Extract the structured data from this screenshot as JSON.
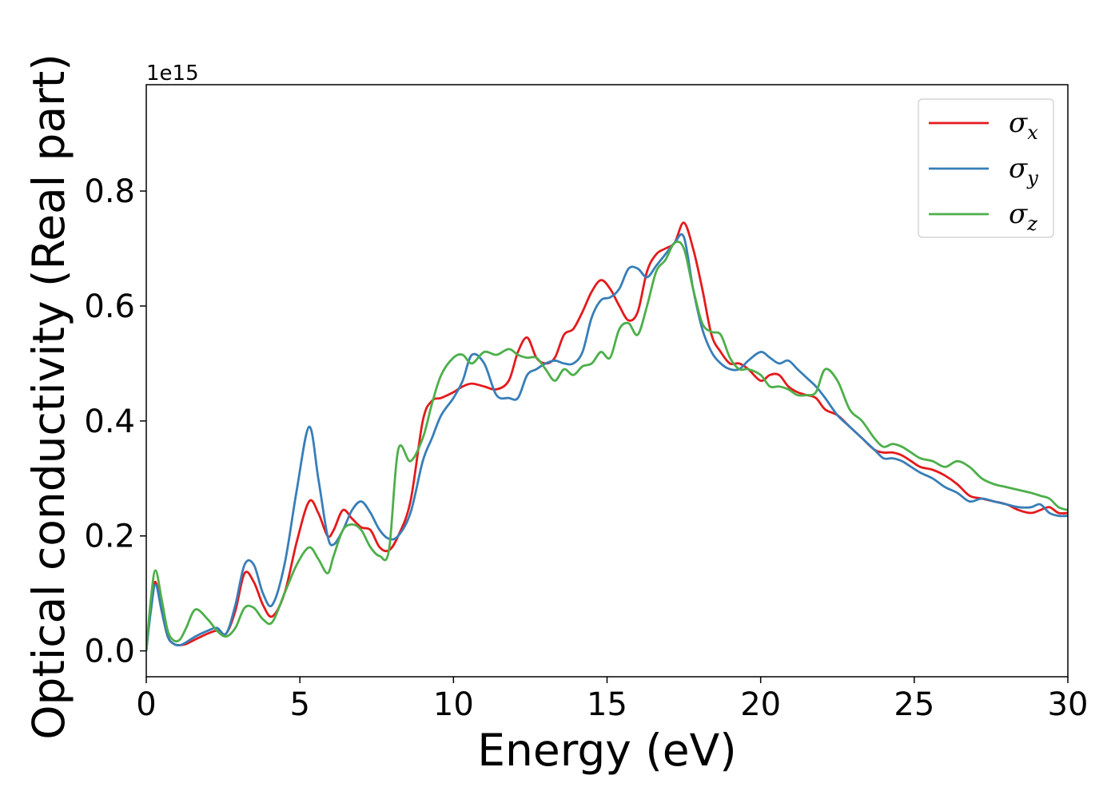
{
  "chart_data": {
    "type": "line",
    "title": "",
    "xlabel": "Energy (eV)",
    "ylabel": "Optical conductivity (Real part)",
    "y_offset_label": "1e15",
    "xlim": [
      0,
      30
    ],
    "ylim": [
      -0.045,
      0.985
    ],
    "x_ticks": [
      0,
      5,
      10,
      15,
      20,
      25,
      30
    ],
    "x_tick_labels": [
      "0",
      "5",
      "10",
      "15",
      "20",
      "25",
      "30"
    ],
    "y_ticks": [
      0.0,
      0.2,
      0.4,
      0.6,
      0.8
    ],
    "y_tick_labels": [
      "0.0",
      "0.2",
      "0.4",
      "0.6",
      "0.8"
    ],
    "grid": false,
    "legend_position": "top-right",
    "series": [
      {
        "name": "σx",
        "symbol": "σ",
        "subscript": "x",
        "color": "#e41a1c",
        "x": [
          0,
          0.15,
          0.3,
          0.5,
          0.7,
          0.9,
          1.1,
          1.3,
          1.6,
          2,
          2.3,
          2.6,
          2.9,
          3.2,
          3.5,
          3.8,
          4.1,
          4.5,
          4.9,
          5.3,
          5.6,
          5.9,
          6.1,
          6.4,
          6.7,
          7,
          7.3,
          7.6,
          7.9,
          8.2,
          8.6,
          9,
          9.3,
          9.6,
          10,
          10.3,
          10.6,
          11,
          11.4,
          11.8,
          12.1,
          12.4,
          12.7,
          13,
          13.3,
          13.6,
          13.9,
          14.2,
          14.5,
          14.8,
          15.1,
          15.4,
          15.7,
          16,
          16.3,
          16.6,
          16.9,
          17.2,
          17.5,
          17.8,
          18.1,
          18.4,
          18.7,
          19,
          19.3,
          19.6,
          20,
          20.3,
          20.6,
          20.9,
          21.2,
          21.5,
          21.8,
          22.1,
          22.5,
          22.9,
          23.3,
          23.7,
          24,
          24.3,
          24.6,
          24.9,
          25.2,
          25.6,
          26,
          26.4,
          26.8,
          27.2,
          27.6,
          28,
          28.4,
          28.8,
          29.1,
          29.4,
          29.7,
          30
        ],
        "y": [
          0.0,
          0.08,
          0.12,
          0.07,
          0.025,
          0.012,
          0.01,
          0.012,
          0.02,
          0.03,
          0.035,
          0.03,
          0.07,
          0.135,
          0.12,
          0.08,
          0.06,
          0.1,
          0.19,
          0.26,
          0.24,
          0.2,
          0.21,
          0.245,
          0.23,
          0.215,
          0.21,
          0.18,
          0.175,
          0.2,
          0.26,
          0.4,
          0.435,
          0.44,
          0.45,
          0.46,
          0.465,
          0.46,
          0.455,
          0.47,
          0.52,
          0.545,
          0.51,
          0.5,
          0.51,
          0.55,
          0.56,
          0.59,
          0.625,
          0.645,
          0.63,
          0.6,
          0.575,
          0.59,
          0.66,
          0.69,
          0.7,
          0.71,
          0.745,
          0.7,
          0.63,
          0.55,
          0.52,
          0.5,
          0.5,
          0.49,
          0.47,
          0.48,
          0.48,
          0.46,
          0.45,
          0.445,
          0.44,
          0.42,
          0.41,
          0.39,
          0.37,
          0.35,
          0.345,
          0.345,
          0.34,
          0.33,
          0.32,
          0.315,
          0.305,
          0.29,
          0.27,
          0.265,
          0.26,
          0.255,
          0.245,
          0.24,
          0.245,
          0.25,
          0.24,
          0.24
        ]
      },
      {
        "name": "σy",
        "symbol": "σ",
        "subscript": "y",
        "color": "#377eb8",
        "x": [
          0,
          0.15,
          0.3,
          0.5,
          0.7,
          0.9,
          1.1,
          1.3,
          1.6,
          2,
          2.3,
          2.6,
          2.9,
          3.2,
          3.5,
          3.8,
          4.1,
          4.5,
          4.9,
          5.3,
          5.6,
          5.9,
          6.1,
          6.4,
          6.7,
          7,
          7.3,
          7.6,
          7.9,
          8.2,
          8.6,
          9,
          9.3,
          9.6,
          10,
          10.3,
          10.6,
          11,
          11.4,
          11.8,
          12.1,
          12.4,
          12.7,
          13,
          13.3,
          13.6,
          13.9,
          14.2,
          14.5,
          14.8,
          15.1,
          15.4,
          15.7,
          16,
          16.3,
          16.6,
          16.9,
          17.2,
          17.5,
          17.8,
          18.1,
          18.4,
          18.7,
          19,
          19.3,
          19.6,
          20,
          20.3,
          20.6,
          20.9,
          21.2,
          21.5,
          21.8,
          22.1,
          22.5,
          22.9,
          23.3,
          23.7,
          24,
          24.3,
          24.6,
          24.9,
          25.2,
          25.6,
          26,
          26.4,
          26.8,
          27.2,
          27.6,
          28,
          28.4,
          28.8,
          29.1,
          29.4,
          29.7,
          30
        ],
        "y": [
          0.0,
          0.07,
          0.115,
          0.07,
          0.025,
          0.012,
          0.01,
          0.015,
          0.025,
          0.035,
          0.04,
          0.03,
          0.08,
          0.15,
          0.15,
          0.1,
          0.08,
          0.15,
          0.28,
          0.39,
          0.3,
          0.2,
          0.185,
          0.21,
          0.245,
          0.26,
          0.24,
          0.21,
          0.195,
          0.2,
          0.24,
          0.33,
          0.37,
          0.41,
          0.44,
          0.47,
          0.515,
          0.5,
          0.445,
          0.44,
          0.44,
          0.48,
          0.49,
          0.5,
          0.505,
          0.5,
          0.5,
          0.52,
          0.58,
          0.61,
          0.615,
          0.63,
          0.665,
          0.665,
          0.65,
          0.67,
          0.69,
          0.71,
          0.72,
          0.63,
          0.56,
          0.52,
          0.5,
          0.49,
          0.49,
          0.505,
          0.52,
          0.51,
          0.5,
          0.505,
          0.49,
          0.475,
          0.46,
          0.44,
          0.41,
          0.39,
          0.37,
          0.35,
          0.335,
          0.335,
          0.33,
          0.32,
          0.31,
          0.3,
          0.285,
          0.275,
          0.26,
          0.265,
          0.26,
          0.255,
          0.25,
          0.25,
          0.255,
          0.24,
          0.235,
          0.235
        ]
      },
      {
        "name": "σz",
        "symbol": "σ",
        "subscript": "z",
        "color": "#4daf4a",
        "x": [
          0,
          0.15,
          0.3,
          0.5,
          0.7,
          0.9,
          1.1,
          1.3,
          1.6,
          2,
          2.3,
          2.6,
          2.9,
          3.2,
          3.5,
          3.8,
          4.1,
          4.5,
          4.9,
          5.3,
          5.6,
          5.9,
          6.1,
          6.4,
          6.7,
          7,
          7.3,
          7.6,
          7.9,
          8.2,
          8.6,
          9,
          9.3,
          9.6,
          10,
          10.3,
          10.6,
          11,
          11.4,
          11.8,
          12.1,
          12.4,
          12.7,
          13,
          13.3,
          13.6,
          13.9,
          14.2,
          14.5,
          14.8,
          15.1,
          15.4,
          15.7,
          16,
          16.3,
          16.6,
          16.9,
          17.2,
          17.5,
          17.8,
          18.1,
          18.4,
          18.7,
          19,
          19.3,
          19.6,
          20,
          20.3,
          20.6,
          20.9,
          21.2,
          21.5,
          21.8,
          22.1,
          22.5,
          22.9,
          23.3,
          23.7,
          24,
          24.3,
          24.6,
          24.9,
          25.2,
          25.6,
          26,
          26.4,
          26.8,
          27.2,
          27.6,
          28,
          28.4,
          28.8,
          29.1,
          29.4,
          29.7,
          30
        ],
        "y": [
          0.0,
          0.09,
          0.14,
          0.09,
          0.035,
          0.018,
          0.02,
          0.04,
          0.072,
          0.055,
          0.035,
          0.025,
          0.04,
          0.075,
          0.075,
          0.055,
          0.05,
          0.1,
          0.15,
          0.18,
          0.16,
          0.135,
          0.165,
          0.21,
          0.22,
          0.21,
          0.18,
          0.165,
          0.175,
          0.35,
          0.33,
          0.37,
          0.43,
          0.48,
          0.51,
          0.515,
          0.5,
          0.52,
          0.515,
          0.525,
          0.515,
          0.51,
          0.51,
          0.49,
          0.47,
          0.49,
          0.48,
          0.495,
          0.5,
          0.52,
          0.51,
          0.56,
          0.57,
          0.55,
          0.6,
          0.66,
          0.68,
          0.71,
          0.7,
          0.63,
          0.57,
          0.555,
          0.55,
          0.51,
          0.49,
          0.49,
          0.48,
          0.46,
          0.46,
          0.455,
          0.445,
          0.445,
          0.45,
          0.49,
          0.47,
          0.42,
          0.4,
          0.37,
          0.355,
          0.36,
          0.355,
          0.345,
          0.335,
          0.33,
          0.32,
          0.33,
          0.32,
          0.3,
          0.29,
          0.285,
          0.28,
          0.275,
          0.27,
          0.265,
          0.25,
          0.245
        ]
      }
    ]
  }
}
